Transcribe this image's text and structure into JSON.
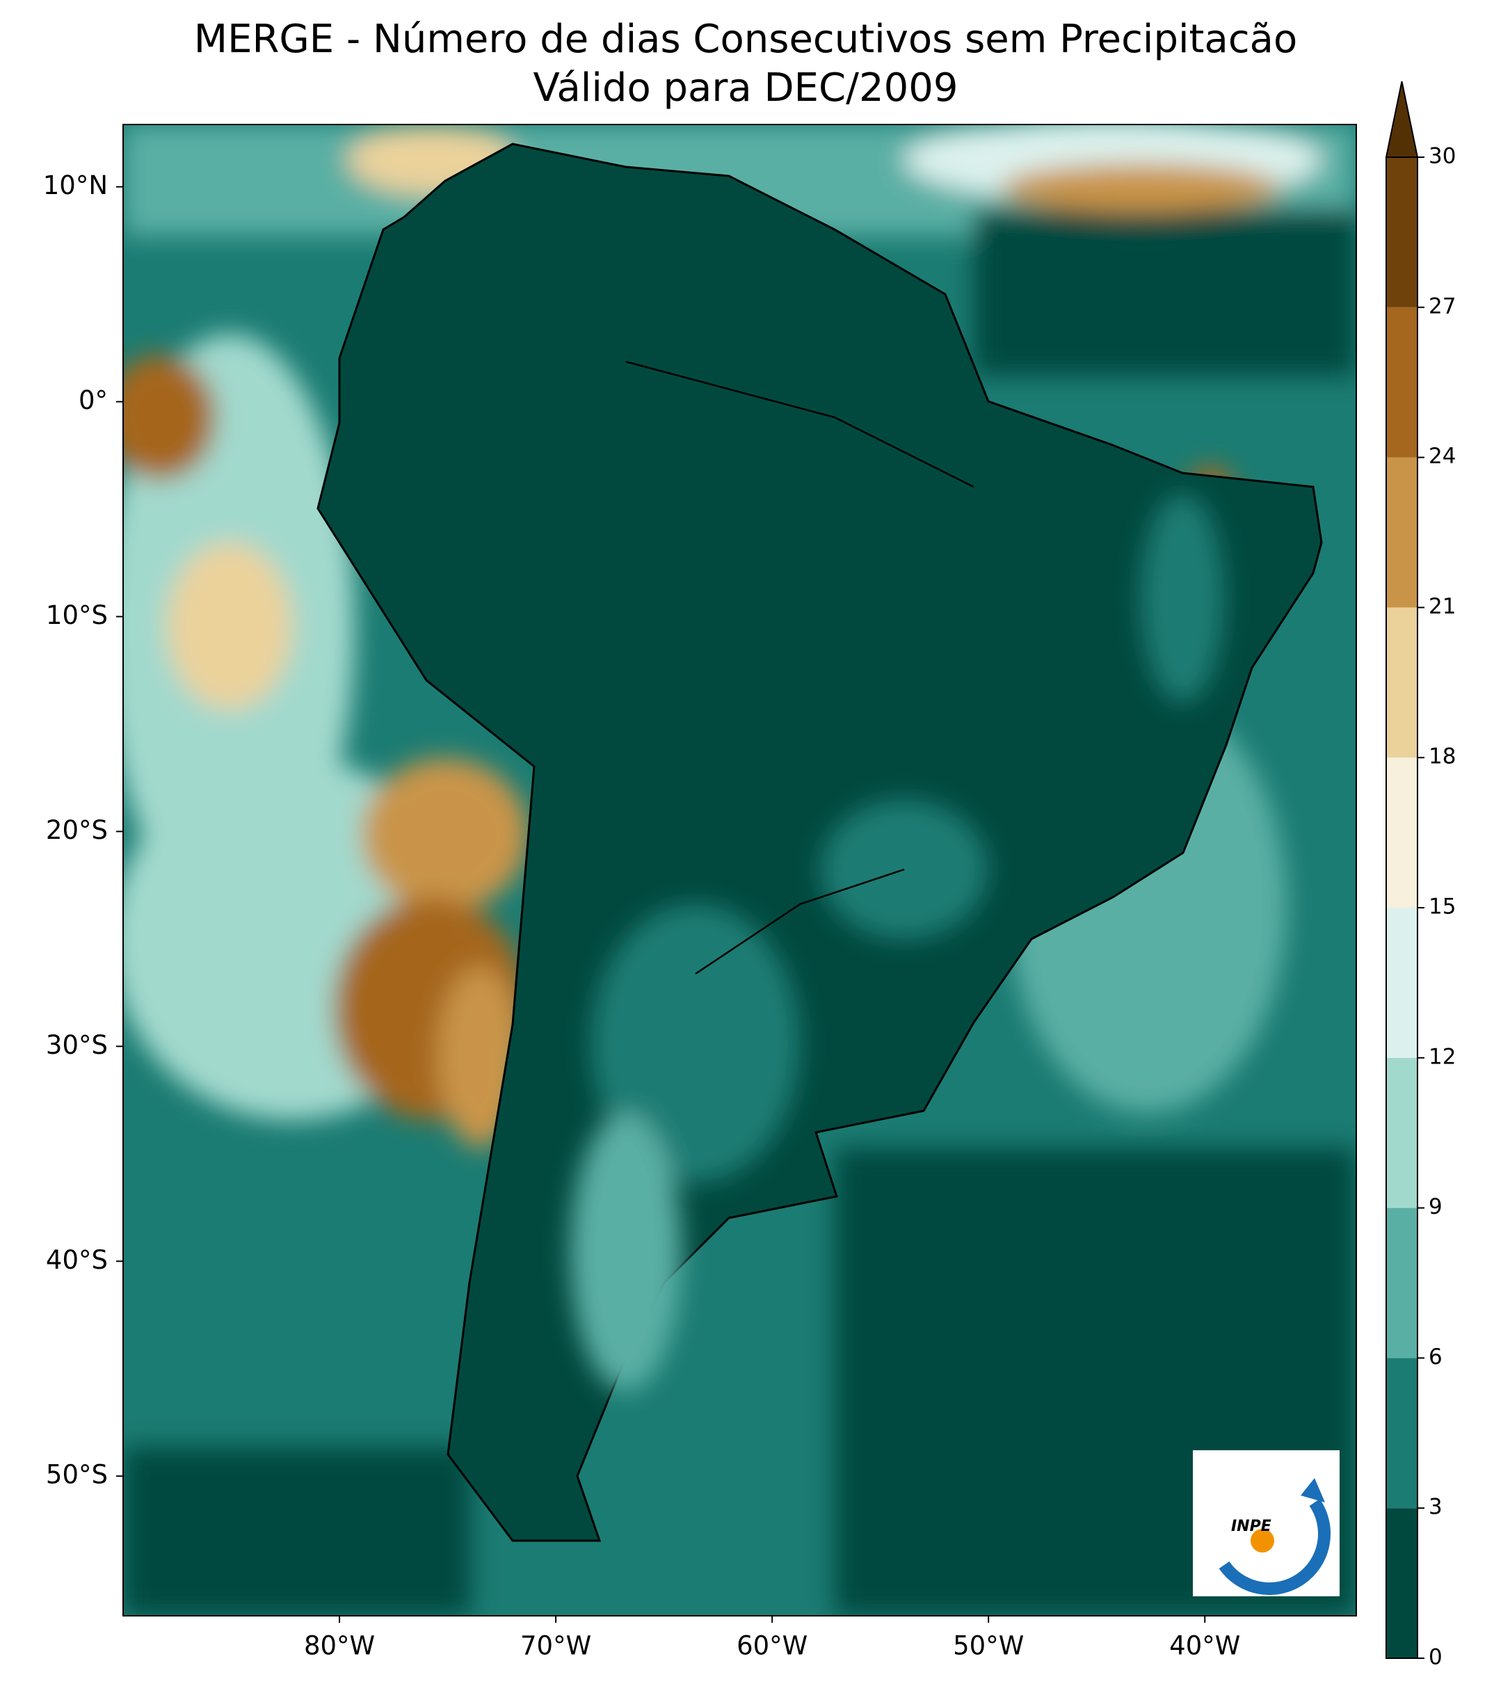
{
  "chart_data": {
    "type": "contour_map",
    "title": "MERGE - Número de dias Consecutivos sem Precipitacão",
    "subtitle": "Válido para DEC/2009",
    "xlim": [
      -90,
      -33
    ],
    "ylim": [
      -56.5,
      12.9
    ],
    "xticks": [
      {
        "value": -80,
        "label": "80°W"
      },
      {
        "value": -70,
        "label": "70°W"
      },
      {
        "value": -60,
        "label": "60°W"
      },
      {
        "value": -50,
        "label": "50°W"
      },
      {
        "value": -40,
        "label": "40°W"
      }
    ],
    "yticks": [
      {
        "value": 10,
        "label": "10°N"
      },
      {
        "value": 0,
        "label": "0°"
      },
      {
        "value": -10,
        "label": "10°S"
      },
      {
        "value": -20,
        "label": "20°S"
      },
      {
        "value": -30,
        "label": "30°S"
      },
      {
        "value": -40,
        "label": "40°S"
      },
      {
        "value": -50,
        "label": "50°S"
      }
    ],
    "colorbar": {
      "levels": [
        0,
        3,
        6,
        9,
        12,
        15,
        18,
        21,
        24,
        27,
        30
      ],
      "colors": [
        "#01493f",
        "#1b7c73",
        "#5aafa4",
        "#a2d9cd",
        "#dcf1ed",
        "#f6f0dc",
        "#ebd29b",
        "#c99448",
        "#a5661e",
        "#6f420b"
      ],
      "extend_color": "#543005"
    },
    "logo": "INPE"
  }
}
